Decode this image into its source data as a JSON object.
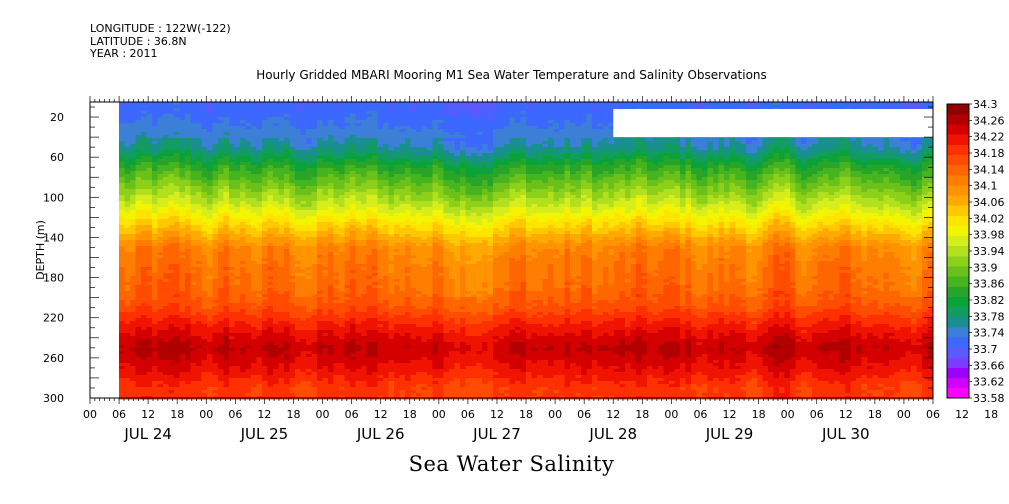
{
  "meta": {
    "longitude": "LONGITUDE : 122W(-122)",
    "latitude": "LATITUDE : 36.8N",
    "year": "YEAR : 2011"
  },
  "chart_data": {
    "type": "heatmap",
    "title": "Hourly Gridded MBARI Mooring M1 Sea Water Temperature and Salinity Observations",
    "xlabel": "",
    "ylabel": "DEPTH (m)",
    "bottom_label": "Sea Water Salinity",
    "x_range_hours": [
      0,
      174
    ],
    "data_start_hour": 6,
    "x_hour_ticks": [
      "00",
      "06",
      "12",
      "18",
      "00",
      "06",
      "12",
      "18",
      "00",
      "06",
      "12",
      "18",
      "00",
      "06",
      "12",
      "18",
      "00",
      "06",
      "12",
      "18",
      "00",
      "06",
      "12",
      "18",
      "00",
      "06",
      "12",
      "18",
      "00",
      "06",
      "12",
      "18"
    ],
    "x_day_labels": [
      "JUL 24",
      "JUL 25",
      "JUL 26",
      "JUL 27",
      "JUL 28",
      "JUL 29",
      "JUL 30"
    ],
    "y_range": [
      300,
      5
    ],
    "y_ticks": [
      20,
      60,
      100,
      140,
      180,
      220,
      260,
      300
    ],
    "depths": [
      10,
      30,
      50,
      70,
      90,
      110,
      130,
      150,
      170,
      190,
      210,
      230,
      250,
      270,
      290
    ],
    "profile": [
      33.71,
      33.73,
      33.76,
      33.84,
      33.9,
      33.96,
      34.03,
      34.1,
      34.12,
      34.13,
      34.16,
      34.21,
      34.25,
      34.22,
      34.18
    ],
    "missing_block": {
      "hours": [
        108,
        174
      ],
      "depth": [
        12,
        40
      ]
    },
    "colorbar": {
      "min": 33.58,
      "max": 34.3,
      "labels": [
        34.3,
        34.26,
        34.22,
        34.18,
        34.14,
        34.1,
        34.06,
        34.02,
        33.98,
        33.94,
        33.9,
        33.86,
        33.82,
        33.78,
        33.74,
        33.7,
        33.66,
        33.62,
        33.58
      ],
      "colors": [
        "#ff00ff",
        "#d100ff",
        "#9c00ff",
        "#7a3cff",
        "#5a5aff",
        "#3c68ff",
        "#3b7fd6",
        "#1a8f8f",
        "#129c62",
        "#0aa33a",
        "#28a428",
        "#46b41e",
        "#6cc01a",
        "#8cd01a",
        "#b2e01c",
        "#d8ee1c",
        "#f2f400",
        "#ffe400",
        "#ffc800",
        "#ffaa00",
        "#ff9300",
        "#ff7d00",
        "#ff6600",
        "#ff4c00",
        "#ff3000",
        "#f01400",
        "#d40000",
        "#b00000",
        "#900000"
      ]
    }
  }
}
